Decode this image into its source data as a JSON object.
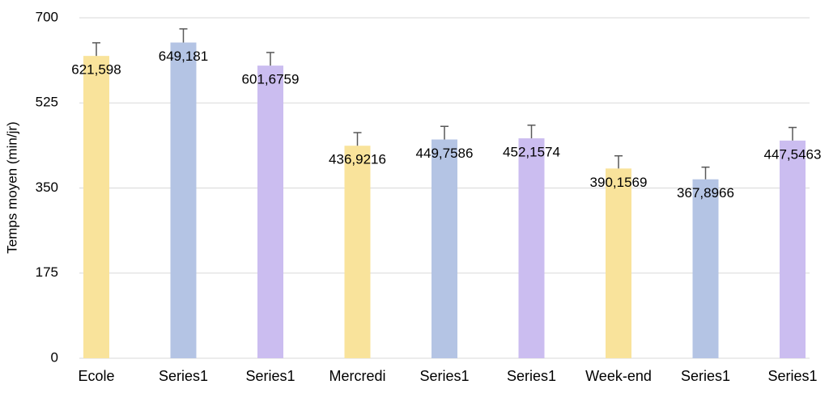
{
  "chart_data": {
    "type": "bar",
    "y_label": "Temps moyen (min/jr)",
    "categories": [
      "Ecole",
      "Series1",
      "Series1",
      "Mercredi",
      "Series1",
      "Series1",
      "Week-end",
      "Series1",
      "Series1"
    ],
    "values": [
      621.598,
      649.181,
      601.6759,
      436.9216,
      449.7586,
      452.1574,
      390.1569,
      367.8966,
      447.5463
    ],
    "value_labels": [
      "621,598",
      "649,181",
      "601,6759",
      "436,9216",
      "449,7586",
      "452,1574",
      "390,1569",
      "367,8966",
      "447,5463"
    ],
    "errors": [
      27,
      28,
      27,
      27,
      27,
      27,
      26,
      25,
      27
    ],
    "colors": [
      "#f9e39b",
      "#b4c4e4",
      "#cbbdf0",
      "#f9e39b",
      "#b4c4e4",
      "#cbbdf0",
      "#f9e39b",
      "#b4c4e4",
      "#cbbdf0"
    ],
    "ylim": [
      0,
      700
    ],
    "yticks": [
      0,
      175,
      350,
      525,
      700
    ],
    "grid": true
  }
}
